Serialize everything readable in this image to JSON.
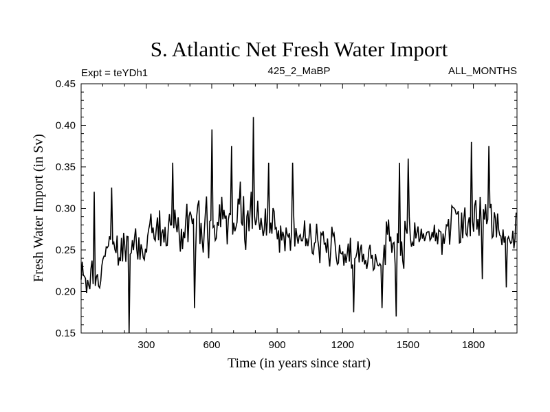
{
  "chart_data": {
    "type": "line",
    "title": "S. Atlantic Net Fresh Water Import",
    "left_label": "Expt = teYDh1",
    "center_label": "425_2_MaBP",
    "right_label": "ALL_MONTHS",
    "xlabel": "Time (in years since start)",
    "ylabel": "Fresh Water Import (in Sv)",
    "xlim": [
      1,
      2000
    ],
    "ylim": [
      0.15,
      0.45
    ],
    "xticks": [
      300,
      600,
      900,
      1200,
      1500,
      1800
    ],
    "xtick_labels": [
      "300",
      "600",
      "900",
      "1200",
      "1500",
      "1800"
    ],
    "yticks": [
      0.15,
      0.2,
      0.25,
      0.3,
      0.35,
      0.4,
      0.45
    ],
    "ytick_labels": [
      "0.15",
      "0.20",
      "0.25",
      "0.30",
      "0.35",
      "0.40",
      "0.45"
    ],
    "grid": false,
    "series": [
      {
        "name": "Net Fresh Water Import",
        "color": "#000000",
        "step_years": 5,
        "mean_by_century": [
          0.215,
          0.255,
          0.26,
          0.265,
          0.275,
          0.28,
          0.285,
          0.29,
          0.28,
          0.265,
          0.26,
          0.255,
          0.245,
          0.24,
          0.26,
          0.265,
          0.27,
          0.28,
          0.29,
          0.27
        ],
        "amplitude_by_century": [
          0.03,
          0.03,
          0.03,
          0.035,
          0.035,
          0.04,
          0.04,
          0.045,
          0.035,
          0.03,
          0.03,
          0.03,
          0.025,
          0.025,
          0.035,
          0.03,
          0.03,
          0.035,
          0.04,
          0.035
        ],
        "peaks": [
          [
            60,
            0.32
          ],
          [
            140,
            0.325
          ],
          [
            220,
            0.15
          ],
          [
            420,
            0.355
          ],
          [
            520,
            0.18
          ],
          [
            600,
            0.395
          ],
          [
            690,
            0.375
          ],
          [
            790,
            0.41
          ],
          [
            860,
            0.355
          ],
          [
            970,
            0.355
          ],
          [
            1250,
            0.175
          ],
          [
            1380,
            0.18
          ],
          [
            1445,
            0.17
          ],
          [
            1460,
            0.355
          ],
          [
            1500,
            0.36
          ],
          [
            1790,
            0.38
          ],
          [
            1840,
            0.215
          ],
          [
            1870,
            0.375
          ],
          [
            1950,
            0.205
          ]
        ]
      }
    ]
  }
}
